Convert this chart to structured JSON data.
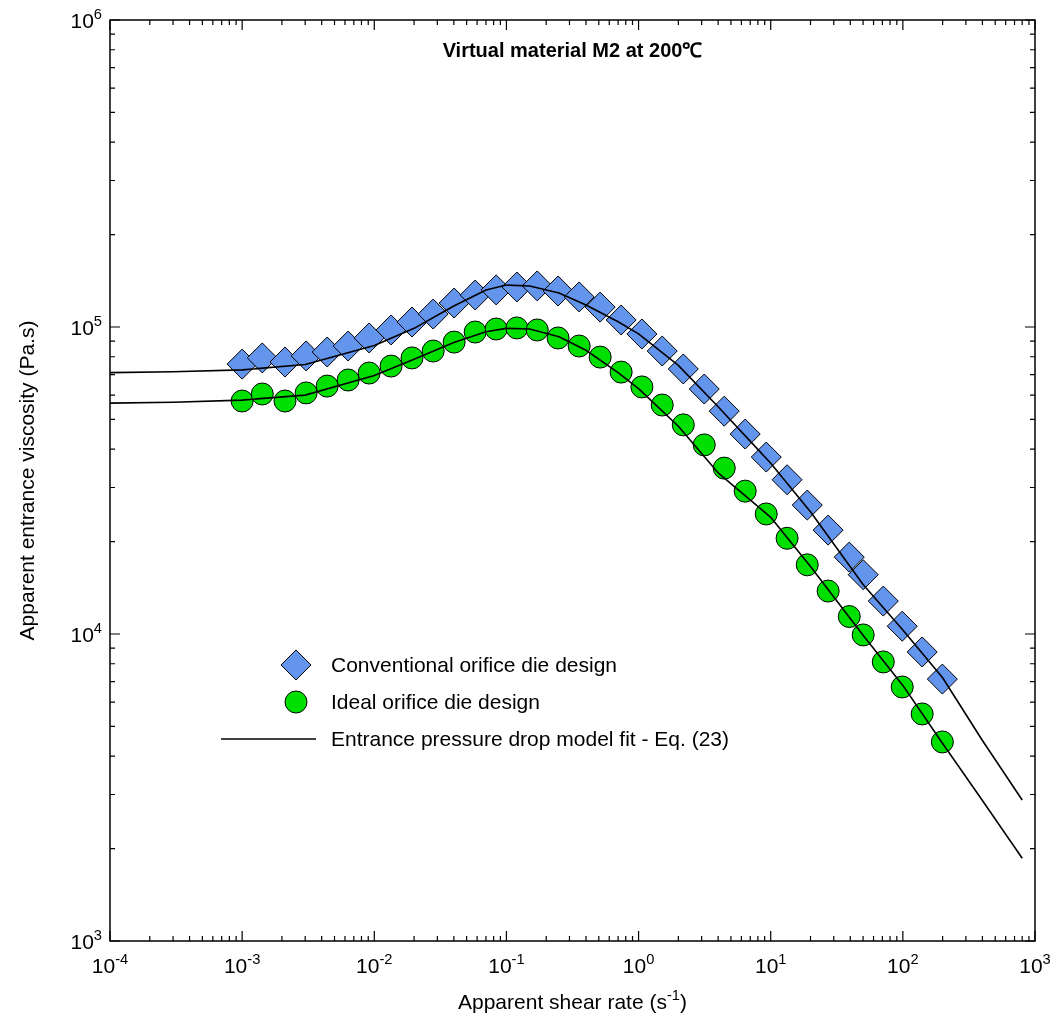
{
  "chart_data": {
    "type": "scatter",
    "title": "Virtual material M2 at 200℃",
    "xlabel": "Apparent shear rate (s$^{-1}$)",
    "ylabel": "Apparent entrance viscosity (Pa.s)",
    "log": "xy",
    "grid": false,
    "legend": "bottom left",
    "x": [
      0.001,
      0.00142,
      0.00211,
      0.00305,
      0.0044,
      0.00634,
      0.00914,
      0.0134,
      0.0193,
      0.0279,
      0.0402,
      0.058,
      0.0836,
      0.12,
      0.171,
      0.246,
      0.355,
      0.512,
      0.738,
      1.06,
      1.51,
      2.18,
      3.14,
      4.45,
      6.41,
      9.25,
      13.3,
      18.9,
      27.2,
      39.3,
      50.1,
      71.1,
      98.9,
      140,
      199
    ],
    "series": [
      {
        "name": "Conventional orifice die design",
        "type": "scatter",
        "marker": "diamond",
        "color": "#6495ed",
        "values": [
          75700,
          79300,
          76900,
          80500,
          82900,
          86700,
          92100,
          97800,
          103800,
          110200,
          119700,
          127100,
          132100,
          135000,
          136100,
          131000,
          125300,
          116100,
          105400,
          94900,
          83500,
          73000,
          62800,
          53200,
          44800,
          37700,
          31800,
          26300,
          21800,
          17800,
          15600,
          12800,
          10600,
          8740,
          7130
        ]
      },
      {
        "name": "Ideal orifice die design",
        "type": "scatter",
        "marker": "circle",
        "color": "#00e000",
        "values": [
          57400,
          60500,
          57400,
          61000,
          64200,
          67200,
          70800,
          74600,
          79300,
          83500,
          89300,
          96300,
          98500,
          99300,
          97800,
          92100,
          86700,
          79800,
          71300,
          63800,
          55700,
          48000,
          41300,
          34700,
          29200,
          24600,
          20500,
          16800,
          13800,
          11400,
          9930,
          8110,
          6720,
          5490,
          4450
        ]
      },
      {
        "name": "Entrance pressure drop model fit - Eq. (23)",
        "type": "line",
        "marker": "none",
        "color": "#000000",
        "x": [
          0.0001,
          0.0003,
          0.001,
          0.003,
          0.01,
          0.02,
          0.04,
          0.07,
          0.1,
          0.15,
          0.25,
          0.4,
          0.7,
          1,
          2,
          4,
          10,
          20,
          50,
          100,
          200,
          400,
          800
        ],
        "values": [
          71000,
          71500,
          72500,
          75500,
          87000,
          99000,
          117000,
          132000,
          137000,
          136000,
          129000,
          118000,
          104000,
          95000,
          75000,
          55000,
          36000,
          25000,
          14500,
          10300,
          7200,
          4500,
          2880
        ]
      },
      {
        "type": "line",
        "marker": "none",
        "color": "#000000",
        "x": [
          0.0001,
          0.0003,
          0.001,
          0.003,
          0.01,
          0.02,
          0.04,
          0.07,
          0.1,
          0.15,
          0.25,
          0.4,
          0.7,
          1,
          2,
          4,
          10,
          20,
          50,
          100,
          200,
          400,
          800
        ],
        "values": [
          56500,
          56900,
          57800,
          60000,
          69500,
          78500,
          89000,
          96500,
          99000,
          98500,
          93000,
          84000,
          71000,
          63000,
          47500,
          33500,
          24000,
          16600,
          9900,
          6800,
          4400,
          2870,
          1860
        ]
      }
    ],
    "xlim": [
      0.0001,
      1000
    ],
    "ylim": [
      1000,
      1000000
    ],
    "xticks": [
      {
        "value": 0.0001,
        "label": "10$^{-4}$"
      },
      {
        "value": 0.0002,
        "label": null
      },
      {
        "value": 0.0003,
        "label": null
      },
      {
        "value": 0.0004,
        "label": null
      },
      {
        "value": 0.0005,
        "label": null
      },
      {
        "value": 0.0006,
        "label": null
      },
      {
        "value": 0.0007,
        "label": null
      },
      {
        "value": 0.0008,
        "label": null
      },
      {
        "value": 0.0009,
        "label": null
      },
      {
        "value": 0.001,
        "label": "10$^{-3}$"
      },
      {
        "value": 0.002,
        "label": null
      },
      {
        "value": 0.003,
        "label": null
      },
      {
        "value": 0.004,
        "label": null
      },
      {
        "value": 0.005,
        "label": null
      },
      {
        "value": 0.006,
        "label": null
      },
      {
        "value": 0.007,
        "label": null
      },
      {
        "value": 0.008,
        "label": null
      },
      {
        "value": 0.009,
        "label": null
      },
      {
        "value": 0.01,
        "label": "10$^{-2}$"
      },
      {
        "value": 0.02,
        "label": null
      },
      {
        "value": 0.03,
        "label": null
      },
      {
        "value": 0.04,
        "label": null
      },
      {
        "value": 0.05,
        "label": null
      },
      {
        "value": 0.06,
        "label": null
      },
      {
        "value": 0.07,
        "label": null
      },
      {
        "value": 0.08,
        "label": null
      },
      {
        "value": 0.09,
        "label": null
      },
      {
        "value": 0.1,
        "label": "10$^{-1}$"
      },
      {
        "value": 0.2,
        "label": null
      },
      {
        "value": 0.3,
        "label": null
      },
      {
        "value": 0.4,
        "label": null
      },
      {
        "value": 0.5,
        "label": null
      },
      {
        "value": 0.6,
        "label": null
      },
      {
        "value": 0.7,
        "label": null
      },
      {
        "value": 0.8,
        "label": null
      },
      {
        "value": 0.9,
        "label": null
      },
      {
        "value": 1,
        "label": "10$^{0}$"
      },
      {
        "value": 2,
        "label": null
      },
      {
        "value": 3,
        "label": null
      },
      {
        "value": 4,
        "label": null
      },
      {
        "value": 5,
        "label": null
      },
      {
        "value": 6,
        "label": null
      },
      {
        "value": 7,
        "label": null
      },
      {
        "value": 8,
        "label": null
      },
      {
        "value": 9,
        "label": null
      },
      {
        "value": 10,
        "label": "10$^{1}$"
      },
      {
        "value": 20,
        "label": null
      },
      {
        "value": 30,
        "label": null
      },
      {
        "value": 40,
        "label": null
      },
      {
        "value": 50,
        "label": null
      },
      {
        "value": 60,
        "label": null
      },
      {
        "value": 70,
        "label": null
      },
      {
        "value": 80,
        "label": null
      },
      {
        "value": 90,
        "label": null
      },
      {
        "value": 100,
        "label": "10$^{2}$"
      },
      {
        "value": 200,
        "label": null
      },
      {
        "value": 300,
        "label": null
      },
      {
        "value": 400,
        "label": null
      },
      {
        "value": 500,
        "label": null
      },
      {
        "value": 600,
        "label": null
      },
      {
        "value": 700,
        "label": null
      },
      {
        "value": 800,
        "label": null
      },
      {
        "value": 900,
        "label": null
      },
      {
        "value": 1000,
        "label": "10$^{3}$"
      }
    ],
    "yticks": [
      {
        "value": 1000,
        "label": "10$^{3}$"
      },
      {
        "value": 2000,
        "label": null
      },
      {
        "value": 3000,
        "label": null
      },
      {
        "value": 4000,
        "label": null
      },
      {
        "value": 5000,
        "label": null
      },
      {
        "value": 6000,
        "label": null
      },
      {
        "value": 7000,
        "label": null
      },
      {
        "value": 8000,
        "label": null
      },
      {
        "value": 9000,
        "label": null
      },
      {
        "value": 10000,
        "label": "10$^{4}$"
      },
      {
        "value": 20000,
        "label": null
      },
      {
        "value": 30000,
        "label": null
      },
      {
        "value": 40000,
        "label": null
      },
      {
        "value": 50000,
        "label": null
      },
      {
        "value": 60000,
        "label": null
      },
      {
        "value": 70000,
        "label": null
      },
      {
        "value": 80000,
        "label": null
      },
      {
        "value": 90000,
        "label": null
      },
      {
        "value": 100000,
        "label": "10$^{5}$"
      },
      {
        "value": 200000,
        "label": null
      },
      {
        "value": 300000,
        "label": null
      },
      {
        "value": 400000,
        "label": null
      },
      {
        "value": 500000,
        "label": null
      },
      {
        "value": 600000,
        "label": null
      },
      {
        "value": 700000,
        "label": null
      },
      {
        "value": 800000,
        "label": null
      },
      {
        "value": 900000,
        "label": null
      },
      {
        "value": 1000000,
        "label": "10$^{6}$"
      }
    ]
  }
}
